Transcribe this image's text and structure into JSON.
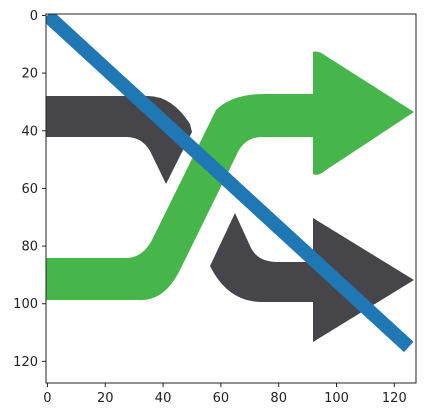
{
  "chart_data": {
    "type": "image",
    "xlim": [
      -0.5,
      127.5
    ],
    "ylim": [
      127.5,
      -0.5
    ],
    "y_inverted": true,
    "grid": false,
    "xticks": [
      0,
      20,
      40,
      60,
      80,
      100,
      120
    ],
    "yticks": [
      0,
      20,
      40,
      60,
      80,
      100,
      120
    ],
    "xtick_labels": [
      "0",
      "20",
      "40",
      "60",
      "80",
      "100",
      "120"
    ],
    "ytick_labels": [
      "0",
      "20",
      "40",
      "60",
      "80",
      "100",
      "120"
    ],
    "image_content": "shuffle-icon",
    "image_colors": {
      "green": "#46b64a",
      "dark": "#46464a"
    },
    "series": [
      {
        "type": "line",
        "color": "#1f77b4",
        "x": [
          0,
          125
        ],
        "y": [
          0,
          115
        ]
      }
    ]
  }
}
